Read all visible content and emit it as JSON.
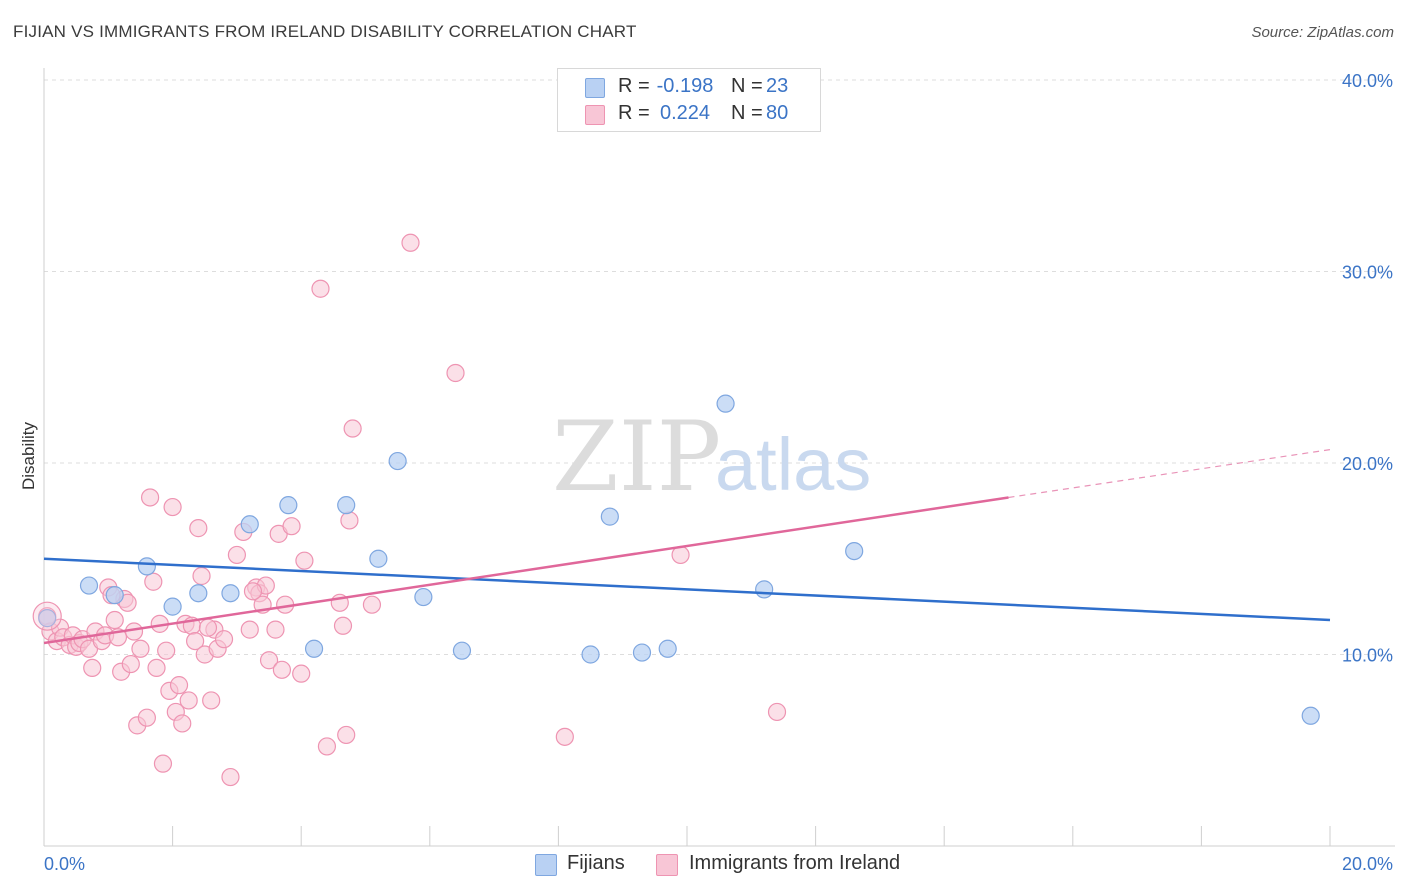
{
  "header": {
    "title": "FIJIAN VS IMMIGRANTS FROM IRELAND DISABILITY CORRELATION CHART",
    "source": "Source: ZipAtlas.com"
  },
  "watermark": {
    "zip": "ZIP",
    "atlas": "atlas"
  },
  "stats": {
    "fijians": {
      "r_label": "R =",
      "r_value": "-0.198",
      "n_label": "N =",
      "n_value": "23"
    },
    "ireland": {
      "r_label": "R =",
      "r_value": "0.224",
      "n_label": "N =",
      "n_value": "80"
    }
  },
  "legend": {
    "fijians": "Fijians",
    "ireland": "Immigrants from Ireland"
  },
  "colors": {
    "fijians_fill": "#b9d1f3",
    "fijians_stroke": "#7fa7e0",
    "fijians_line": "#2f6fcc",
    "ireland_fill": "#f8c6d6",
    "ireland_stroke": "#ee94b2",
    "ireland_line": "#e0679a",
    "grid": "#dddddd",
    "tick_text": "#3b74c6"
  },
  "chart_data": {
    "type": "scatter",
    "title": "FIJIAN VS IMMIGRANTS FROM IRELAND DISABILITY CORRELATION CHART",
    "xlabel": "",
    "ylabel": "Disability",
    "xlim": [
      0,
      20
    ],
    "ylim": [
      0,
      40
    ],
    "x_tick_labels": [
      "0.0%",
      "20.0%"
    ],
    "y_tick_values": [
      10,
      20,
      30,
      40
    ],
    "y_tick_labels": [
      "10.0%",
      "20.0%",
      "30.0%",
      "40.0%"
    ],
    "grid": true,
    "legend_position": "bottom-center",
    "series": [
      {
        "name": "Fijians",
        "r": -0.198,
        "n": 23,
        "trend": {
          "x": [
            0,
            20
          ],
          "y": [
            15.0,
            11.8
          ]
        },
        "points": [
          [
            0.05,
            11.9
          ],
          [
            0.7,
            13.6
          ],
          [
            1.1,
            13.1
          ],
          [
            1.6,
            14.6
          ],
          [
            2.0,
            12.5
          ],
          [
            2.4,
            13.2
          ],
          [
            2.9,
            13.2
          ],
          [
            3.2,
            16.8
          ],
          [
            3.8,
            17.8
          ],
          [
            4.2,
            10.3
          ],
          [
            4.7,
            17.8
          ],
          [
            5.2,
            15.0
          ],
          [
            5.5,
            20.1
          ],
          [
            5.9,
            13.0
          ],
          [
            6.5,
            10.2
          ],
          [
            8.5,
            10.0
          ],
          [
            8.8,
            17.2
          ],
          [
            9.3,
            10.1
          ],
          [
            9.7,
            10.3
          ],
          [
            10.6,
            23.1
          ],
          [
            11.2,
            13.4
          ],
          [
            12.6,
            15.4
          ],
          [
            19.7,
            6.8
          ]
        ]
      },
      {
        "name": "Immigrants from Ireland",
        "r": 0.224,
        "n": 80,
        "trend": {
          "x": [
            0,
            15.0
          ],
          "y": [
            10.6,
            18.2
          ]
        },
        "trend_dashed_to": {
          "x": 20,
          "y": 20.7
        },
        "points": [
          [
            0.05,
            12.0
          ],
          [
            0.1,
            11.2
          ],
          [
            0.2,
            10.7
          ],
          [
            0.25,
            11.4
          ],
          [
            0.3,
            10.9
          ],
          [
            0.4,
            10.5
          ],
          [
            0.45,
            11.0
          ],
          [
            0.5,
            10.4
          ],
          [
            0.55,
            10.6
          ],
          [
            0.6,
            10.8
          ],
          [
            0.7,
            10.3
          ],
          [
            0.75,
            9.3
          ],
          [
            0.8,
            11.2
          ],
          [
            0.9,
            10.7
          ],
          [
            0.95,
            11.0
          ],
          [
            1.0,
            13.5
          ],
          [
            1.1,
            11.8
          ],
          [
            1.15,
            10.9
          ],
          [
            1.2,
            9.1
          ],
          [
            1.25,
            12.9
          ],
          [
            1.3,
            12.7
          ],
          [
            1.35,
            9.5
          ],
          [
            1.4,
            11.2
          ],
          [
            1.45,
            6.3
          ],
          [
            1.5,
            10.3
          ],
          [
            1.6,
            6.7
          ],
          [
            1.65,
            18.2
          ],
          [
            1.7,
            13.8
          ],
          [
            1.75,
            9.3
          ],
          [
            1.8,
            11.6
          ],
          [
            1.85,
            4.3
          ],
          [
            1.9,
            10.2
          ],
          [
            1.95,
            8.1
          ],
          [
            2.0,
            17.7
          ],
          [
            2.05,
            7.0
          ],
          [
            2.1,
            8.4
          ],
          [
            2.15,
            6.4
          ],
          [
            2.2,
            11.6
          ],
          [
            2.25,
            7.6
          ],
          [
            2.3,
            11.5
          ],
          [
            2.35,
            10.7
          ],
          [
            2.4,
            16.6
          ],
          [
            2.45,
            14.1
          ],
          [
            2.5,
            10.0
          ],
          [
            2.6,
            7.6
          ],
          [
            2.65,
            11.3
          ],
          [
            2.7,
            10.3
          ],
          [
            2.8,
            10.8
          ],
          [
            2.9,
            3.6
          ],
          [
            3.0,
            15.2
          ],
          [
            3.1,
            16.4
          ],
          [
            3.2,
            11.3
          ],
          [
            3.3,
            13.5
          ],
          [
            3.35,
            13.2
          ],
          [
            3.4,
            12.6
          ],
          [
            3.45,
            13.6
          ],
          [
            3.5,
            9.7
          ],
          [
            3.6,
            11.3
          ],
          [
            3.65,
            16.3
          ],
          [
            3.7,
            9.2
          ],
          [
            3.75,
            12.6
          ],
          [
            3.85,
            16.7
          ],
          [
            4.0,
            9.0
          ],
          [
            4.05,
            14.9
          ],
          [
            4.3,
            29.1
          ],
          [
            4.4,
            5.2
          ],
          [
            4.6,
            12.7
          ],
          [
            4.65,
            11.5
          ],
          [
            4.7,
            5.8
          ],
          [
            4.75,
            17.0
          ],
          [
            4.8,
            21.8
          ],
          [
            5.1,
            12.6
          ],
          [
            5.7,
            31.5
          ],
          [
            6.4,
            24.7
          ],
          [
            8.1,
            5.7
          ],
          [
            9.9,
            15.2
          ],
          [
            11.4,
            7.0
          ],
          [
            3.25,
            13.3
          ],
          [
            1.05,
            13.1
          ],
          [
            2.55,
            11.4
          ]
        ]
      }
    ]
  }
}
